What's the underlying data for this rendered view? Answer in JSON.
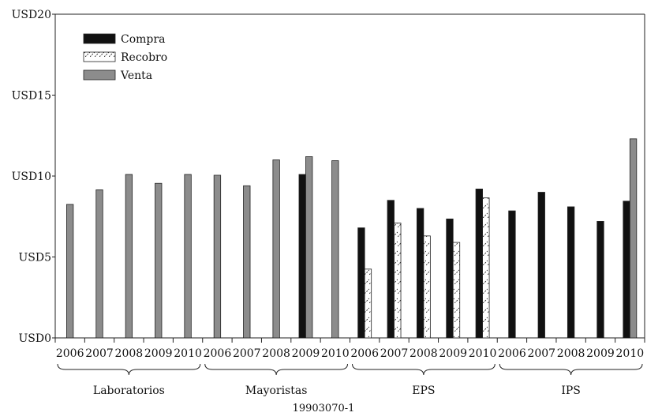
{
  "chart_data": {
    "type": "bar",
    "y_ticks": [
      "USD0",
      "USD5",
      "USD10",
      "USD15",
      "USD20"
    ],
    "ylim": [
      0,
      20
    ],
    "groups": [
      {
        "name": "Laboratorios",
        "years": [
          "2006",
          "2007",
          "2008",
          "2009",
          "2010"
        ]
      },
      {
        "name": "Mayoristas",
        "years": [
          "2006",
          "2007",
          "2008",
          "2009",
          "2010"
        ]
      },
      {
        "name": "EPS",
        "years": [
          "2006",
          "2007",
          "2008",
          "2009",
          "2010"
        ]
      },
      {
        "name": "IPS",
        "years": [
          "2006",
          "2007",
          "2008",
          "2009",
          "2010"
        ]
      }
    ],
    "series": [
      {
        "name": "Compra",
        "color": "#111111",
        "pattern": "solid",
        "values": [
          null,
          null,
          null,
          null,
          null,
          null,
          null,
          null,
          10.1,
          null,
          6.8,
          8.5,
          8.0,
          7.35,
          9.2,
          7.85,
          9.0,
          8.1,
          7.2,
          8.45
        ]
      },
      {
        "name": "Recobro",
        "color": "#ffffff",
        "pattern": "hatched",
        "values": [
          null,
          null,
          null,
          null,
          null,
          null,
          null,
          null,
          null,
          null,
          4.25,
          7.1,
          6.3,
          5.9,
          8.65,
          null,
          null,
          null,
          null,
          null
        ]
      },
      {
        "name": "Venta",
        "color": "#8c8c8c",
        "pattern": "solid",
        "values": [
          8.25,
          9.15,
          10.1,
          9.55,
          10.1,
          10.05,
          9.4,
          11.0,
          11.2,
          10.95,
          null,
          null,
          null,
          null,
          null,
          null,
          null,
          null,
          null,
          12.3
        ]
      }
    ],
    "legend_position": "top-left",
    "grid": false
  },
  "figure_id": "19903070-1"
}
